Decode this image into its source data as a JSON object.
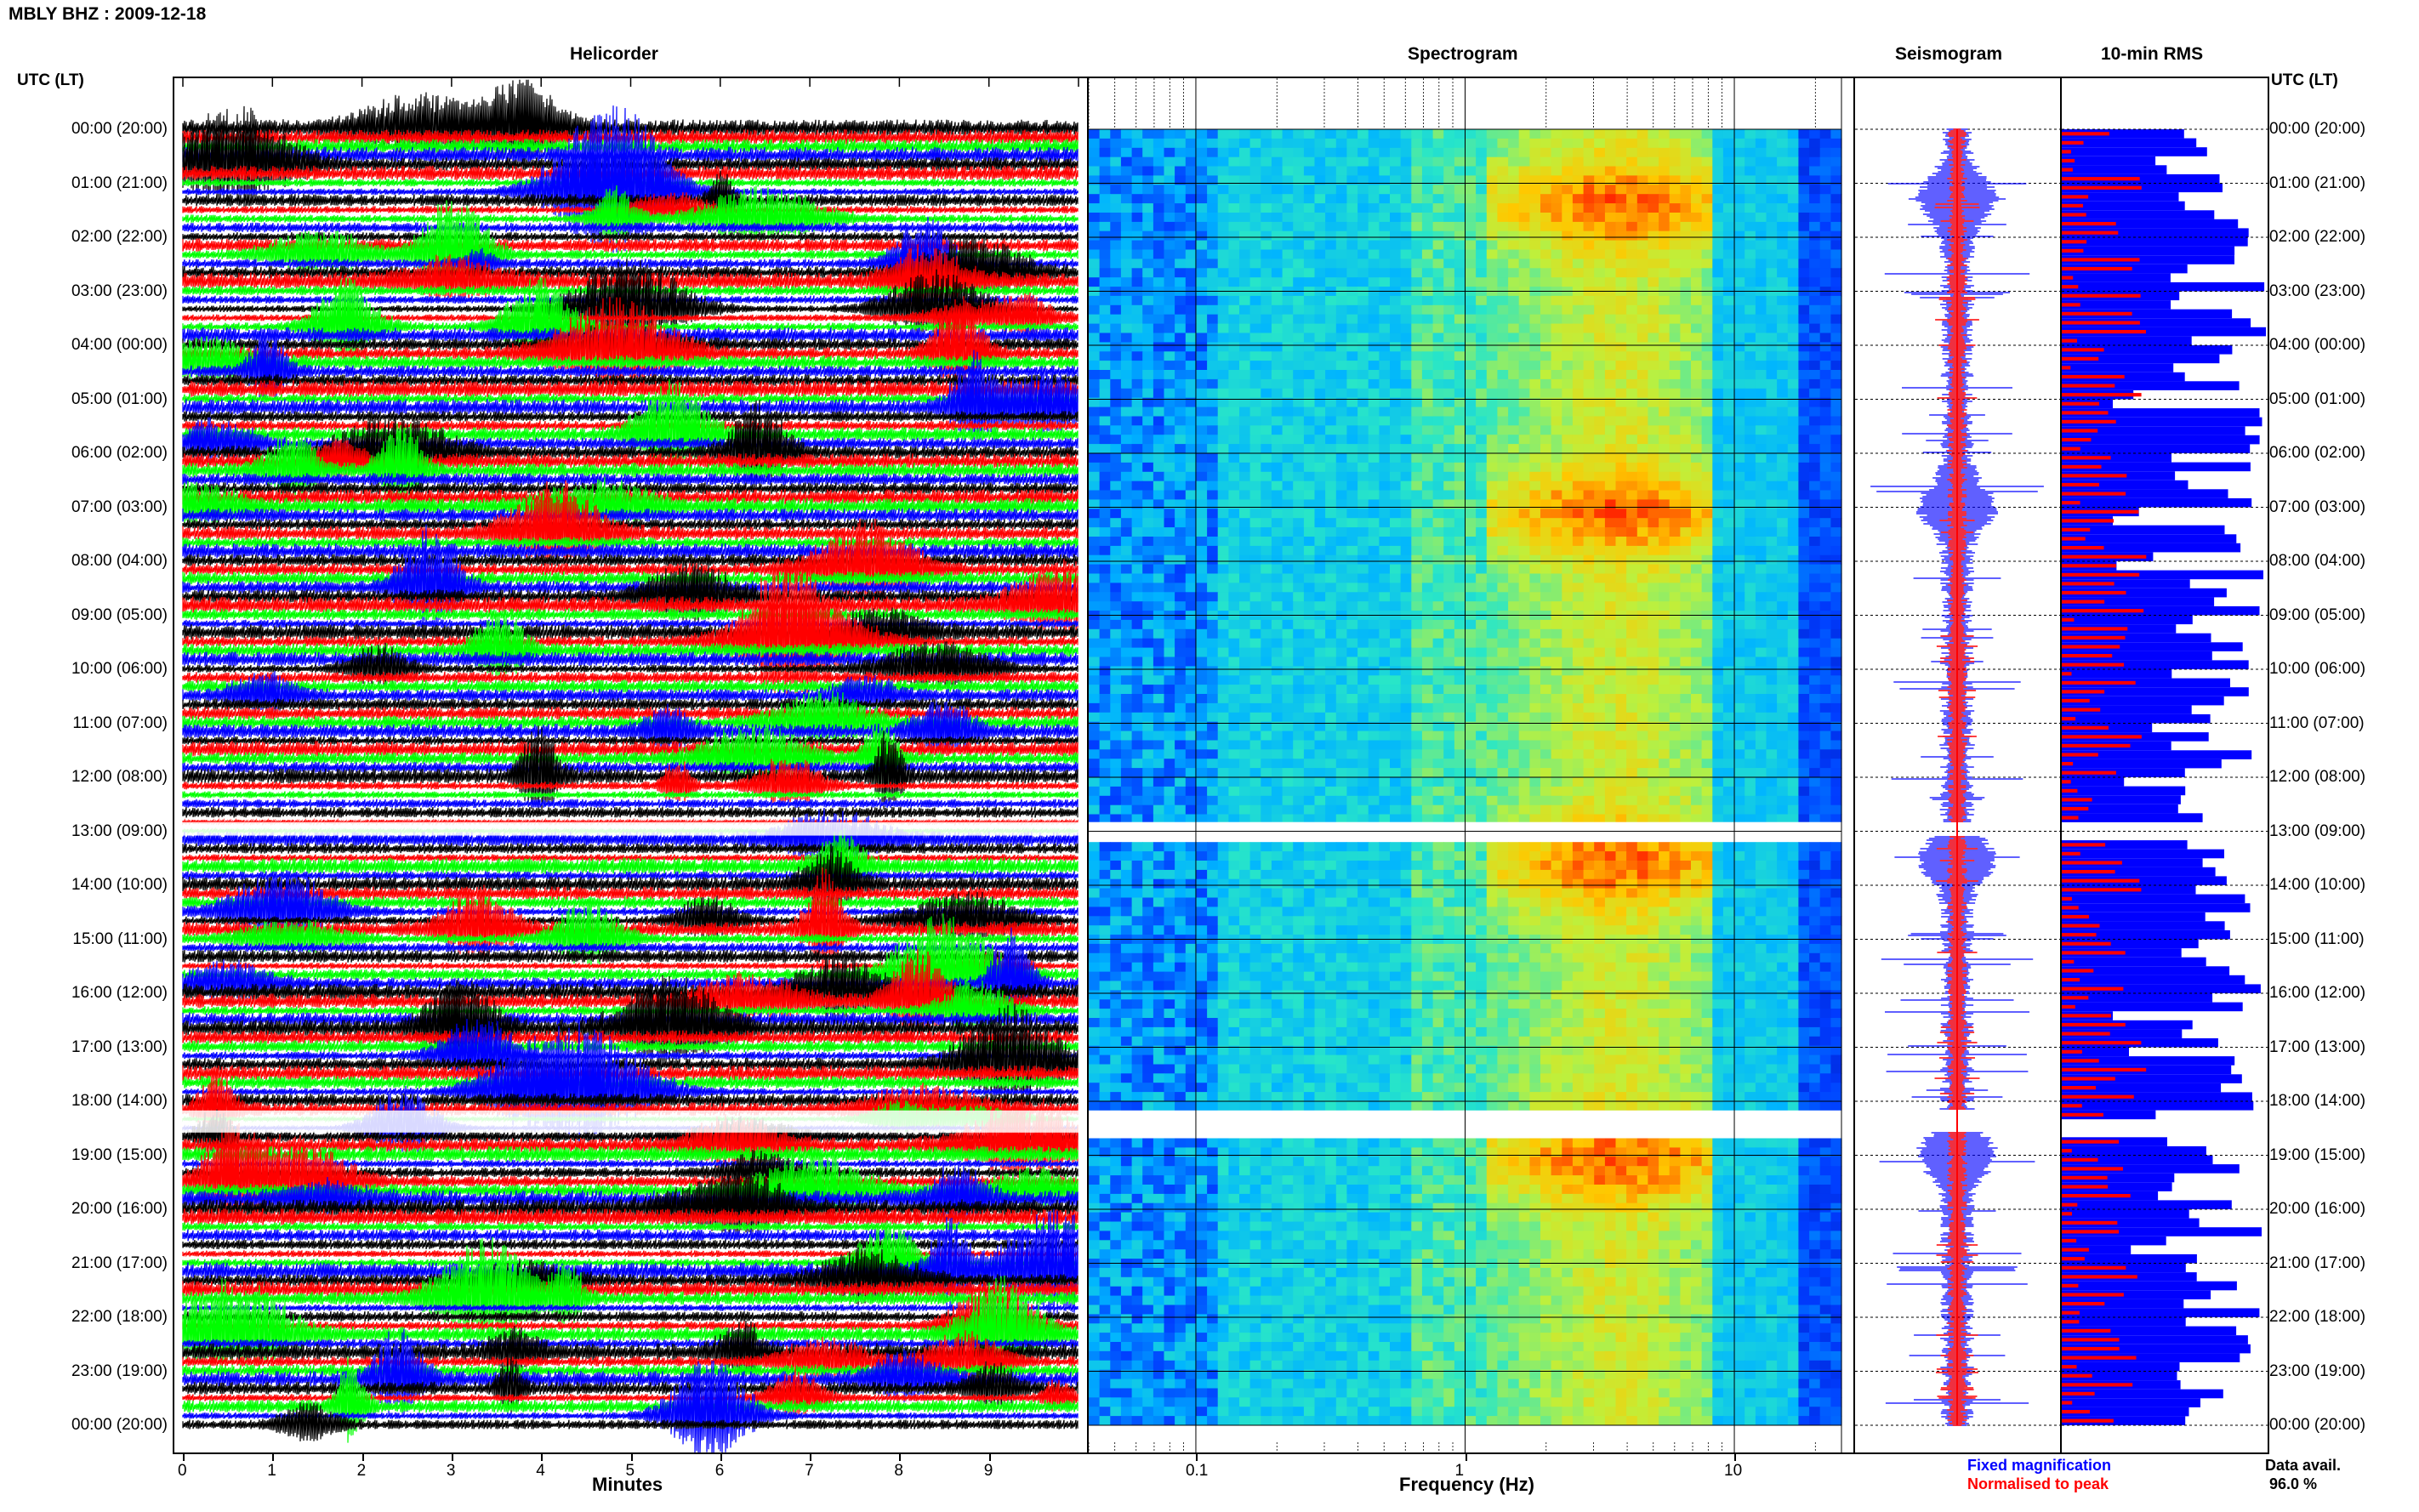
{
  "title": "MBLY BHZ : 2009-12-18",
  "utc_label": "UTC (LT)",
  "panels": {
    "helicorder": "Helicorder",
    "spectrogram": "Spectrogram",
    "seismogram": "Seismogram",
    "rms": "10-min RMS"
  },
  "time_labels": [
    "00:00 (20:00)",
    "01:00 (21:00)",
    "02:00 (22:00)",
    "03:00 (23:00)",
    "04:00 (00:00)",
    "05:00 (01:00)",
    "06:00 (02:00)",
    "07:00 (03:00)",
    "08:00 (04:00)",
    "09:00 (05:00)",
    "10:00 (06:00)",
    "11:00 (07:00)",
    "12:00 (08:00)",
    "13:00 (09:00)",
    "14:00 (10:00)",
    "15:00 (11:00)",
    "16:00 (12:00)",
    "17:00 (13:00)",
    "18:00 (14:00)",
    "19:00 (15:00)",
    "20:00 (16:00)",
    "21:00 (17:00)",
    "22:00 (18:00)",
    "23:00 (19:00)",
    "00:00 (20:00)"
  ],
  "colors": {
    "trace_black": "#000000",
    "trace_red": "#ff0000",
    "trace_green": "#00ff00",
    "trace_blue": "#0000ff",
    "fixed_magnification": "#0000ff",
    "normalised_to_peak": "#ff0000"
  },
  "chart_data": [
    {
      "type": "line",
      "title": "Helicorder",
      "xlabel": "Minutes",
      "x_ticks": [
        "0",
        "1",
        "2",
        "3",
        "4",
        "5",
        "6",
        "7",
        "8",
        "9"
      ],
      "xlim": [
        0,
        10
      ],
      "ylabel": "UTC (LT)",
      "trace_colors": [
        "black",
        "red",
        "green",
        "blue"
      ],
      "hours": 24,
      "grid": false
    },
    {
      "type": "heatmap",
      "title": "Spectrogram",
      "xlabel": "Frequency (Hz)",
      "x_ticks": [
        "0.1",
        "1",
        "10"
      ],
      "x_scale": "log",
      "xlim": [
        0.04,
        25
      ],
      "data_gaps_utc": [
        "12:50-13:05",
        "18:10-18:40"
      ],
      "energy_band_hz": [
        2,
        6
      ]
    },
    {
      "type": "line",
      "title": "Seismogram",
      "series": [
        {
          "name": "Fixed magnification",
          "color": "#0000ff"
        },
        {
          "name": "Normalised to peak",
          "color": "#ff0000"
        }
      ]
    },
    {
      "type": "bar",
      "title": "10-min RMS",
      "series": [
        {
          "name": "Fixed magnification",
          "color": "#0000ff"
        },
        {
          "name": "Normalised to peak",
          "color": "#ff0000"
        }
      ]
    }
  ],
  "legend": {
    "fixed": "Fixed magnification",
    "normalised": "Normalised to peak"
  },
  "data_avail_label": "Data avail.",
  "data_avail_value": "96.0 %"
}
